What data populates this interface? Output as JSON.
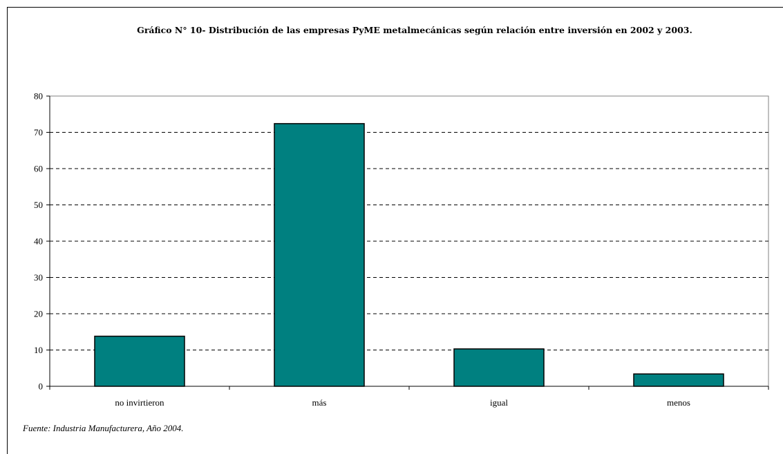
{
  "chart_data": {
    "type": "bar",
    "title": "Gráfico N° 10- Distribución de las empresas PyME metalmecánicas según relación entre inversión en 2002 y 2003.",
    "categories": [
      "no invirtieron",
      "más",
      "igual",
      "menos"
    ],
    "values": [
      13.8,
      72.4,
      10.3,
      3.4
    ],
    "xlabel": "",
    "ylabel": "",
    "ylim": [
      0,
      80
    ],
    "yticks": [
      "0",
      "10",
      "20",
      "30",
      "40",
      "50",
      "60",
      "70",
      "80"
    ],
    "grid": true,
    "legend": "none",
    "bar_color": "#008080",
    "source": "Fuente: Industria Manufacturera, Año 2004."
  }
}
